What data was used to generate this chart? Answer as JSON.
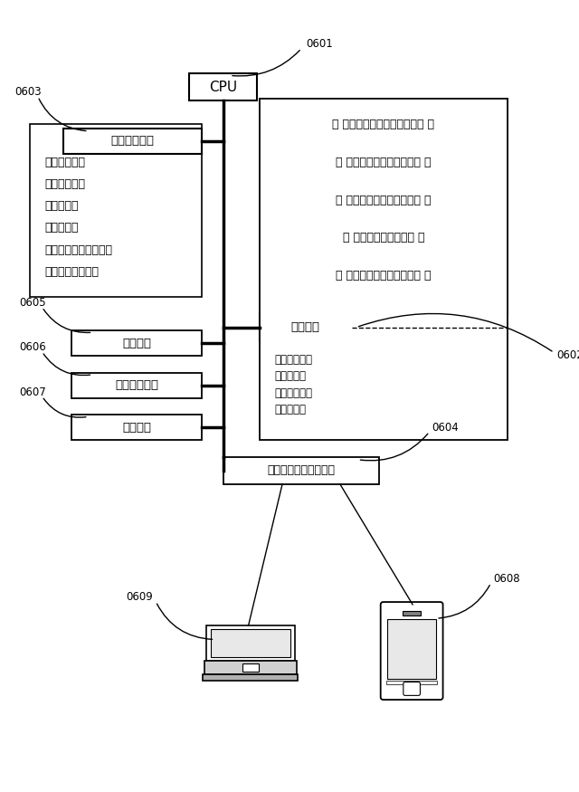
{
  "bg_color": "#ffffff",
  "label_0601": "0601",
  "label_0602": "0602",
  "label_0603": "0603",
  "label_0604": "0604",
  "label_0605": "0605",
  "label_0606": "0606",
  "label_0607": "0607",
  "label_0608": "0608",
  "label_0609": "0609",
  "cpu_label": "CPU",
  "secondary_memory_label": "二次記憶装置",
  "secondary_memory_items": [
    "・検知データ",
    "・要通知情報",
    "・乗員態様",
    "・広告情報",
    "・提示制御プログラム",
    "・各種プログラム"
  ],
  "main_memory_label": "主メモリ",
  "main_memory_items": [
    "・要通知情報",
    "・乗員態様",
    "・検知データ",
    "・広告情報"
  ],
  "programs": [
    "（ 要通知情報取得プログラム ）",
    "（ 乗員態様判別プログラム ）",
    "（ 広告情報取得プログラム ）",
    "（ 提示制御プログラム ）",
    "（ 広告提示制御プログラム ）"
  ],
  "detect_label": "検知手段",
  "display_label": "ディスプレイ",
  "speaker_label": "スピーカ",
  "comm_label": "通信インターフェース"
}
